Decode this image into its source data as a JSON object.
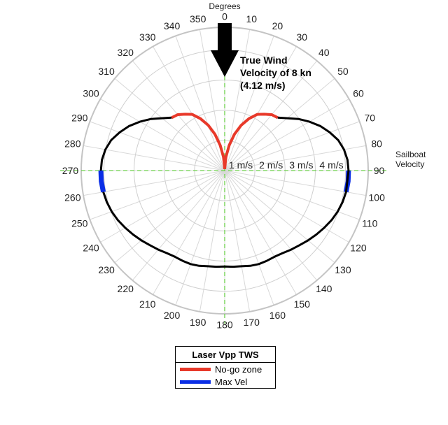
{
  "chart_data": {
    "type": "polar-line",
    "title": "",
    "axis_label_angle": "Degrees",
    "axis_label_radial": "Sailboat Velocity",
    "angle_ticks": [
      0,
      10,
      20,
      30,
      40,
      50,
      60,
      70,
      80,
      90,
      100,
      110,
      120,
      130,
      140,
      150,
      160,
      170,
      180,
      190,
      200,
      210,
      220,
      230,
      240,
      250,
      260,
      270,
      280,
      290,
      300,
      310,
      320,
      330,
      340,
      350
    ],
    "radial_ticks": [
      {
        "value": 1,
        "label": "1 m/s"
      },
      {
        "value": 2,
        "label": "2 m/s"
      },
      {
        "value": 3,
        "label": "3 m/s"
      },
      {
        "value": 4,
        "label": "4 m/s"
      }
    ],
    "rlim": [
      0,
      4.75
    ],
    "grid": true,
    "annotation": {
      "lines": [
        "True Wind",
        "Velocity of 8 kn",
        "(4.12 m/s)"
      ],
      "arrow_direction_deg": 180
    },
    "series": [
      {
        "name": "No-go zone",
        "color": "#e8392a",
        "points": [
          [
            0,
            0.05
          ],
          [
            5,
            0.45
          ],
          [
            10,
            0.85
          ],
          [
            15,
            1.25
          ],
          [
            20,
            1.6
          ],
          [
            25,
            1.9
          ],
          [
            30,
            2.15
          ],
          [
            35,
            2.28
          ],
          [
            40,
            2.42
          ],
          [
            45,
            2.48
          ]
        ]
      },
      {
        "name": "Max Vel",
        "color": "#0a2ee6",
        "points": [
          [
            90,
            4.1
          ],
          [
            95,
            4.1
          ],
          [
            100,
            4.08
          ]
        ]
      },
      {
        "name": "",
        "color": "#000000",
        "points": [
          [
            45,
            2.48
          ],
          [
            50,
            2.7
          ],
          [
            55,
            2.98
          ],
          [
            60,
            3.24
          ],
          [
            65,
            3.49
          ],
          [
            70,
            3.7
          ],
          [
            75,
            3.89
          ],
          [
            80,
            4.01
          ],
          [
            85,
            4.08
          ],
          [
            90,
            4.1
          ],
          [
            100,
            4.08
          ],
          [
            105,
            4.04
          ],
          [
            110,
            3.98
          ],
          [
            115,
            3.9
          ],
          [
            120,
            3.8
          ],
          [
            125,
            3.7
          ],
          [
            130,
            3.6
          ],
          [
            135,
            3.5
          ],
          [
            140,
            3.42
          ],
          [
            145,
            3.34
          ],
          [
            150,
            3.3
          ],
          [
            155,
            3.3
          ],
          [
            160,
            3.3
          ],
          [
            165,
            3.27
          ],
          [
            170,
            3.22
          ],
          [
            175,
            3.2
          ],
          [
            180,
            3.18
          ],
          [
            185,
            3.2
          ],
          [
            190,
            3.22
          ],
          [
            195,
            3.27
          ],
          [
            200,
            3.3
          ],
          [
            205,
            3.3
          ],
          [
            210,
            3.3
          ],
          [
            215,
            3.34
          ],
          [
            220,
            3.42
          ],
          [
            225,
            3.5
          ],
          [
            230,
            3.6
          ],
          [
            235,
            3.7
          ],
          [
            240,
            3.8
          ],
          [
            245,
            3.9
          ],
          [
            250,
            3.98
          ],
          [
            255,
            4.04
          ],
          [
            260,
            4.08
          ],
          [
            270,
            4.1
          ],
          [
            275,
            4.08
          ],
          [
            280,
            4.01
          ],
          [
            285,
            3.89
          ],
          [
            290,
            3.7
          ],
          [
            295,
            3.49
          ],
          [
            300,
            3.24
          ],
          [
            305,
            2.98
          ],
          [
            310,
            2.7
          ],
          [
            315,
            2.48
          ]
        ]
      }
    ],
    "extra_segments": [
      {
        "series": "No-go zone",
        "points": [
          [
            360,
            0.05
          ],
          [
            355,
            0.45
          ],
          [
            350,
            0.85
          ],
          [
            345,
            1.25
          ],
          [
            340,
            1.6
          ],
          [
            335,
            1.9
          ],
          [
            330,
            2.15
          ],
          [
            325,
            2.28
          ],
          [
            320,
            2.42
          ],
          [
            315,
            2.48
          ]
        ]
      },
      {
        "series": "Max Vel",
        "points": [
          [
            260,
            4.08
          ],
          [
            265,
            4.1
          ],
          [
            270,
            4.1
          ]
        ]
      }
    ],
    "legend": {
      "title": "Laser Vpp TWS",
      "position": "bottom-center",
      "entries": [
        {
          "label": "No-go zone",
          "color": "#e8392a"
        },
        {
          "label": "Max Vel",
          "color": "#0a2ee6"
        }
      ]
    }
  }
}
